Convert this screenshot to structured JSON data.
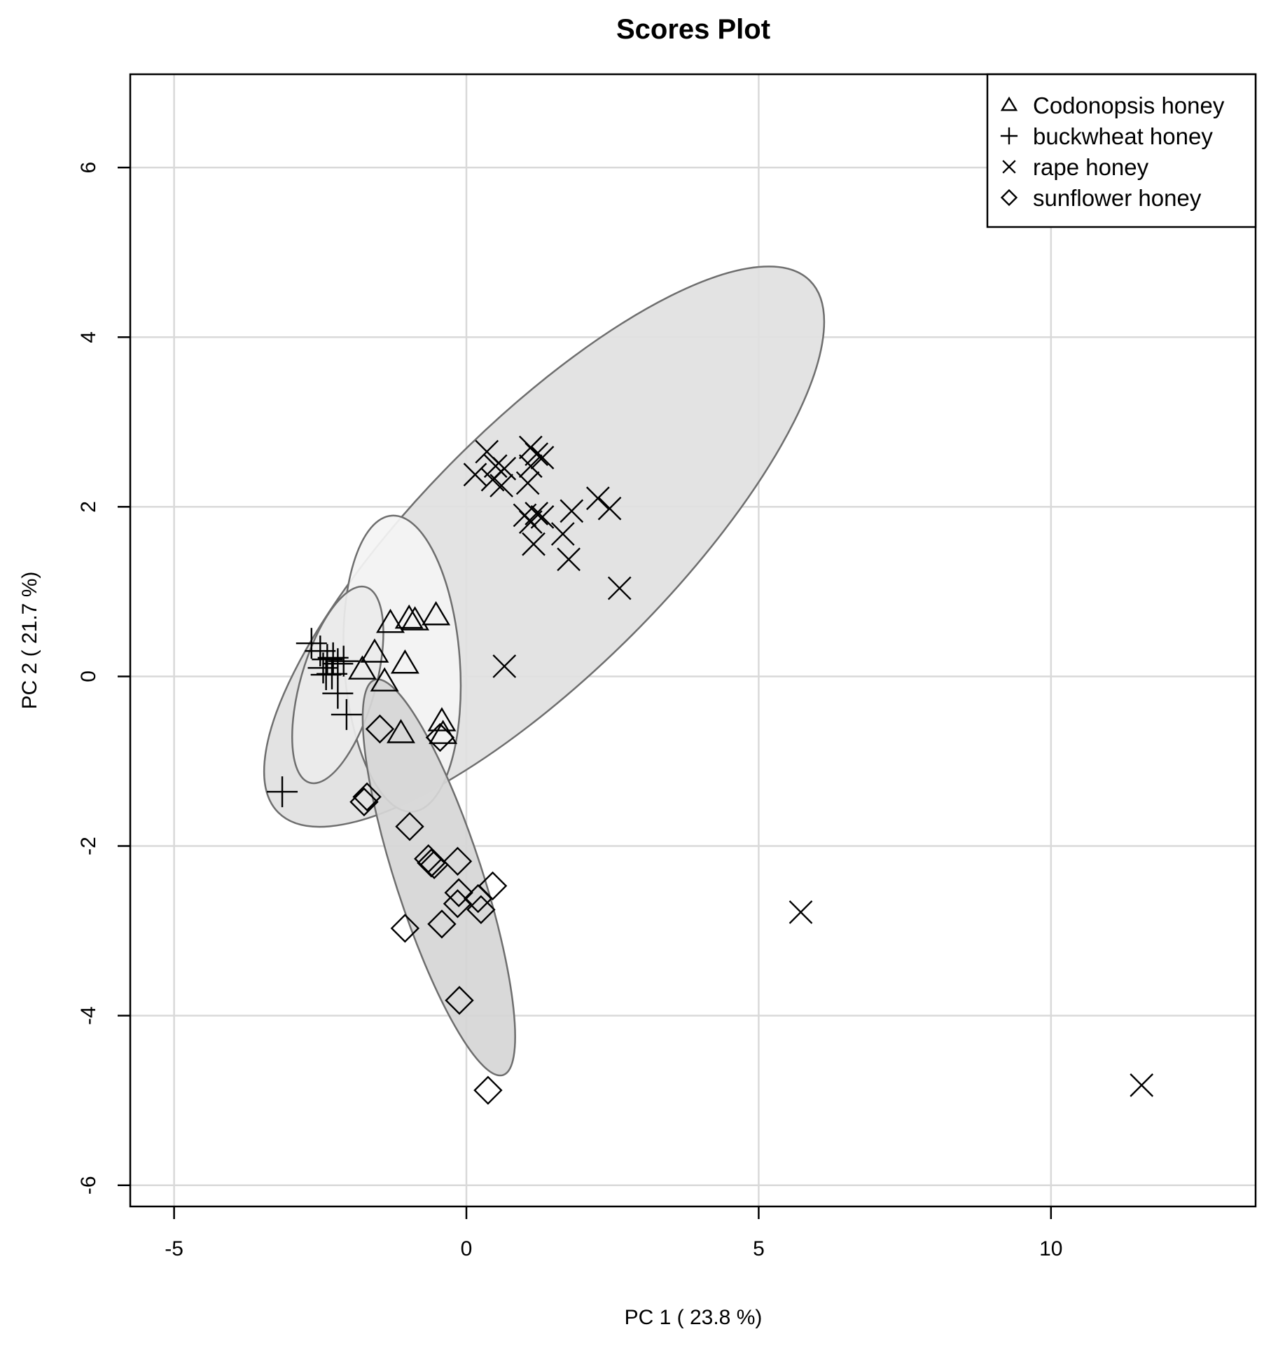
{
  "chart_data": {
    "type": "scatter",
    "title": "Scores Plot",
    "xlabel": "PC 1 ( 23.8 %)",
    "ylabel": "PC 2 ( 21.7 %)",
    "xlim": [
      -5.75,
      13.5
    ],
    "ylim": [
      -6.25,
      7.1
    ],
    "x_ticks": [
      -5,
      0,
      5,
      10
    ],
    "y_ticks": [
      -6,
      -4,
      -2,
      0,
      2,
      4,
      6
    ],
    "grid": true,
    "legend_position": "top-right",
    "series": [
      {
        "name": "Codonopsis honey",
        "marker": "triangle",
        "ellipse": {
          "cx": -1.1,
          "cy": 0.15,
          "rx": 0.99,
          "ry": 1.75,
          "angle_deg": -4,
          "fill": "#f4f4f4"
        },
        "points": [
          {
            "x": -1.3,
            "y": 0.63
          },
          {
            "x": -0.98,
            "y": 0.68
          },
          {
            "x": -0.88,
            "y": 0.66
          },
          {
            "x": -0.52,
            "y": 0.72
          },
          {
            "x": -1.57,
            "y": 0.28
          },
          {
            "x": -1.05,
            "y": 0.15
          },
          {
            "x": -1.78,
            "y": 0.08
          },
          {
            "x": -1.4,
            "y": -0.06
          },
          {
            "x": -1.12,
            "y": -0.67
          },
          {
            "x": -0.42,
            "y": -0.53
          },
          {
            "x": -0.4,
            "y": -0.68
          }
        ]
      },
      {
        "name": "buckwheat honey",
        "marker": "plus",
        "ellipse": {
          "cx": -2.2,
          "cy": -0.1,
          "rx": 0.64,
          "ry": 1.2,
          "angle_deg": 16,
          "fill": "#ebebeb"
        },
        "points": [
          {
            "x": -2.65,
            "y": 0.39
          },
          {
            "x": -2.5,
            "y": 0.3
          },
          {
            "x": -2.38,
            "y": 0.2
          },
          {
            "x": -2.28,
            "y": 0.22
          },
          {
            "x": -2.2,
            "y": 0.15
          },
          {
            "x": -2.1,
            "y": 0.18
          },
          {
            "x": -2.45,
            "y": 0.1
          },
          {
            "x": -2.3,
            "y": 0.03
          },
          {
            "x": -2.4,
            "y": 0.02
          },
          {
            "x": -2.2,
            "y": -0.2
          },
          {
            "x": -2.05,
            "y": -0.45
          },
          {
            "x": -3.15,
            "y": -1.36
          }
        ]
      },
      {
        "name": "rape honey",
        "marker": "cross",
        "ellipse": {
          "cx": 1.33,
          "cy": 1.53,
          "rx": 6.43,
          "ry": 1.47,
          "angle_deg": -45,
          "fill": "#e1e1e1"
        },
        "points": [
          {
            "x": 0.35,
            "y": 2.65
          },
          {
            "x": 0.5,
            "y": 2.48
          },
          {
            "x": 0.65,
            "y": 2.45
          },
          {
            "x": 0.15,
            "y": 2.38
          },
          {
            "x": 0.45,
            "y": 2.32
          },
          {
            "x": 0.6,
            "y": 2.25
          },
          {
            "x": 1.1,
            "y": 2.7
          },
          {
            "x": 1.2,
            "y": 2.62
          },
          {
            "x": 1.3,
            "y": 2.58
          },
          {
            "x": 1.1,
            "y": 2.48
          },
          {
            "x": 1.05,
            "y": 2.28
          },
          {
            "x": 1.0,
            "y": 1.9
          },
          {
            "x": 1.2,
            "y": 1.92
          },
          {
            "x": 1.3,
            "y": 1.88
          },
          {
            "x": 1.1,
            "y": 1.82
          },
          {
            "x": 1.8,
            "y": 1.95
          },
          {
            "x": 2.25,
            "y": 2.1
          },
          {
            "x": 2.45,
            "y": 1.98
          },
          {
            "x": 1.65,
            "y": 1.68
          },
          {
            "x": 1.15,
            "y": 1.56
          },
          {
            "x": 1.75,
            "y": 1.38
          },
          {
            "x": 2.62,
            "y": 1.04
          },
          {
            "x": 0.65,
            "y": 0.12
          },
          {
            "x": 5.72,
            "y": -2.78
          },
          {
            "x": 11.55,
            "y": -4.82
          }
        ]
      },
      {
        "name": "sunflower honey",
        "marker": "diamond",
        "ellipse": {
          "cx": -0.47,
          "cy": -2.37,
          "rx": 0.74,
          "ry": 2.45,
          "angle_deg": -18,
          "fill": "#d6d6d6"
        },
        "points": [
          {
            "x": -1.48,
            "y": -0.62
          },
          {
            "x": -0.45,
            "y": -0.72
          },
          {
            "x": -1.7,
            "y": -1.42
          },
          {
            "x": -1.75,
            "y": -1.48
          },
          {
            "x": -0.97,
            "y": -1.77
          },
          {
            "x": -0.65,
            "y": -2.15
          },
          {
            "x": -0.6,
            "y": -2.2
          },
          {
            "x": -0.55,
            "y": -2.22
          },
          {
            "x": -0.15,
            "y": -2.18
          },
          {
            "x": -0.13,
            "y": -2.55
          },
          {
            "x": 0.45,
            "y": -2.47
          },
          {
            "x": -0.15,
            "y": -2.68
          },
          {
            "x": 0.2,
            "y": -2.62
          },
          {
            "x": 0.25,
            "y": -2.75
          },
          {
            "x": -1.05,
            "y": -2.97
          },
          {
            "x": -0.42,
            "y": -2.92
          },
          {
            "x": -0.12,
            "y": -3.82
          },
          {
            "x": 0.37,
            "y": -4.88
          }
        ]
      }
    ]
  }
}
